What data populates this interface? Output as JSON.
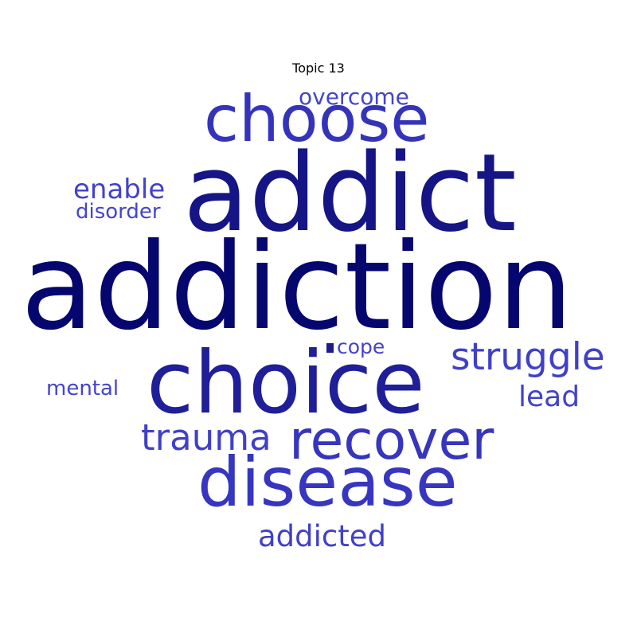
{
  "title": "Topic 13",
  "words": [
    {
      "id": "addiction",
      "text": "addiction",
      "color": "#06066f"
    },
    {
      "id": "addict",
      "text": "addict",
      "color": "#151585"
    },
    {
      "id": "choice",
      "text": "choice",
      "color": "#1f1f99"
    },
    {
      "id": "choose",
      "text": "choose",
      "color": "#3434bb"
    },
    {
      "id": "disease",
      "text": "disease",
      "color": "#3636c0"
    },
    {
      "id": "recover",
      "text": "recover",
      "color": "#3535bd"
    },
    {
      "id": "struggle",
      "text": "struggle",
      "color": "#4040c8"
    },
    {
      "id": "trauma",
      "text": "trauma",
      "color": "#4040c8"
    },
    {
      "id": "addicted",
      "text": "addicted",
      "color": "#4040c8"
    },
    {
      "id": "enable",
      "text": "enable",
      "color": "#4242ca"
    },
    {
      "id": "lead",
      "text": "lead",
      "color": "#4242ca"
    },
    {
      "id": "overcome",
      "text": "overcome",
      "color": "#4444cc"
    },
    {
      "id": "disorder",
      "text": "disorder",
      "color": "#4444cc"
    },
    {
      "id": "mental",
      "text": "mental",
      "color": "#4444cc"
    },
    {
      "id": "cope",
      "text": "cope",
      "color": "#4444cc"
    }
  ]
}
